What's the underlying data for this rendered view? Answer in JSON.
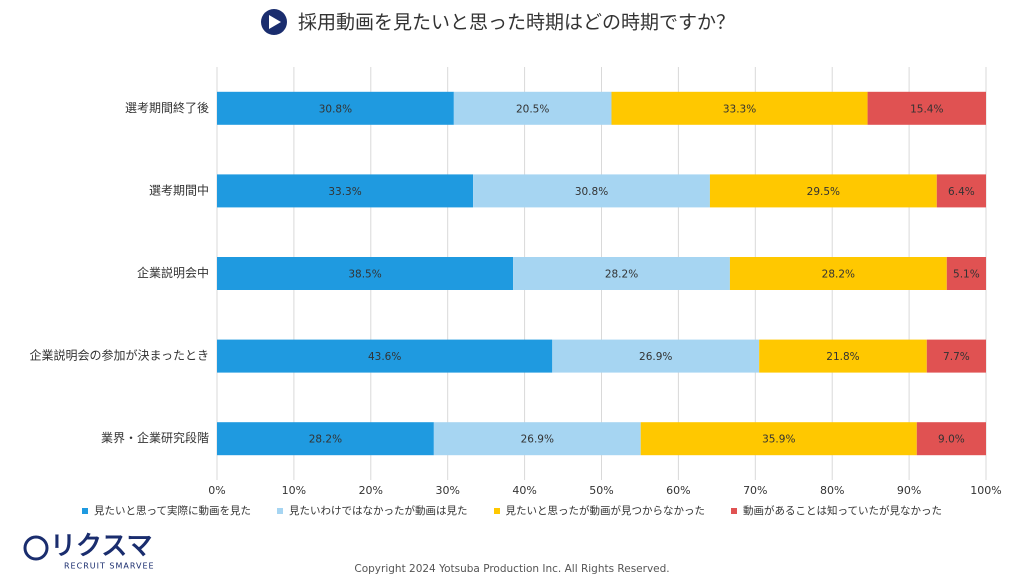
{
  "header": {
    "title": "採用動画を見たいと思った時期はどの時期ですか？"
  },
  "chart_data": {
    "type": "stacked_barh",
    "categories": [
      "選考期間終了後",
      "選考期間中",
      "企業説明会中",
      "企業説明会の参加が決まったとき",
      "業界・企業研究段階"
    ],
    "series": [
      {
        "name": "見たいと思って実際に動画を見た",
        "color": "#1f9ae0",
        "values": [
          30.8,
          33.3,
          38.5,
          43.6,
          28.2
        ],
        "value_labels": [
          "30.8%",
          "33.3%",
          "38.5%",
          "43.6%",
          "28.2%"
        ]
      },
      {
        "name": "見たいわけではなかったが動画は見た",
        "color": "#a6d5f2",
        "values": [
          20.5,
          30.8,
          28.2,
          26.9,
          26.9
        ],
        "value_labels": [
          "20.5%",
          "30.8%",
          "28.2%",
          "26.9%",
          "26.9%"
        ]
      },
      {
        "name": "見たいと思ったが動画が見つからなかった",
        "color": "#ffc800",
        "values": [
          33.3,
          29.5,
          28.2,
          21.8,
          35.9
        ],
        "value_labels": [
          "33.3%",
          "29.5%",
          "28.2%",
          "21.8%",
          "35.9%"
        ]
      },
      {
        "name": "動画があることは知っていたが見なかった",
        "color": "#e05252",
        "values": [
          15.4,
          6.4,
          5.1,
          7.7,
          9.0
        ],
        "value_labels": [
          "15.4%",
          "6.4%",
          "5.1%",
          "7.7%",
          "9.0%"
        ]
      }
    ],
    "xlim": [
      0,
      100
    ],
    "xticks": [
      {
        "value": 0,
        "label": "0%"
      },
      {
        "value": 10,
        "label": "10%"
      },
      {
        "value": 20,
        "label": "20%"
      },
      {
        "value": 30,
        "label": "30%"
      },
      {
        "value": 40,
        "label": "40%"
      },
      {
        "value": 50,
        "label": "50%"
      },
      {
        "value": 60,
        "label": "60%"
      },
      {
        "value": 70,
        "label": "70%"
      },
      {
        "value": 80,
        "label": "80%"
      },
      {
        "value": 90,
        "label": "90%"
      },
      {
        "value": 100,
        "label": "100%"
      }
    ],
    "grid": true,
    "legend": "bottom"
  },
  "footer": {
    "logo": "リクスマ",
    "logo_sub": "RECRUIT SMARVEE",
    "copyright": "Copyright 2024  Yotsuba  Production  Inc.   All  Rights  Reserved."
  }
}
